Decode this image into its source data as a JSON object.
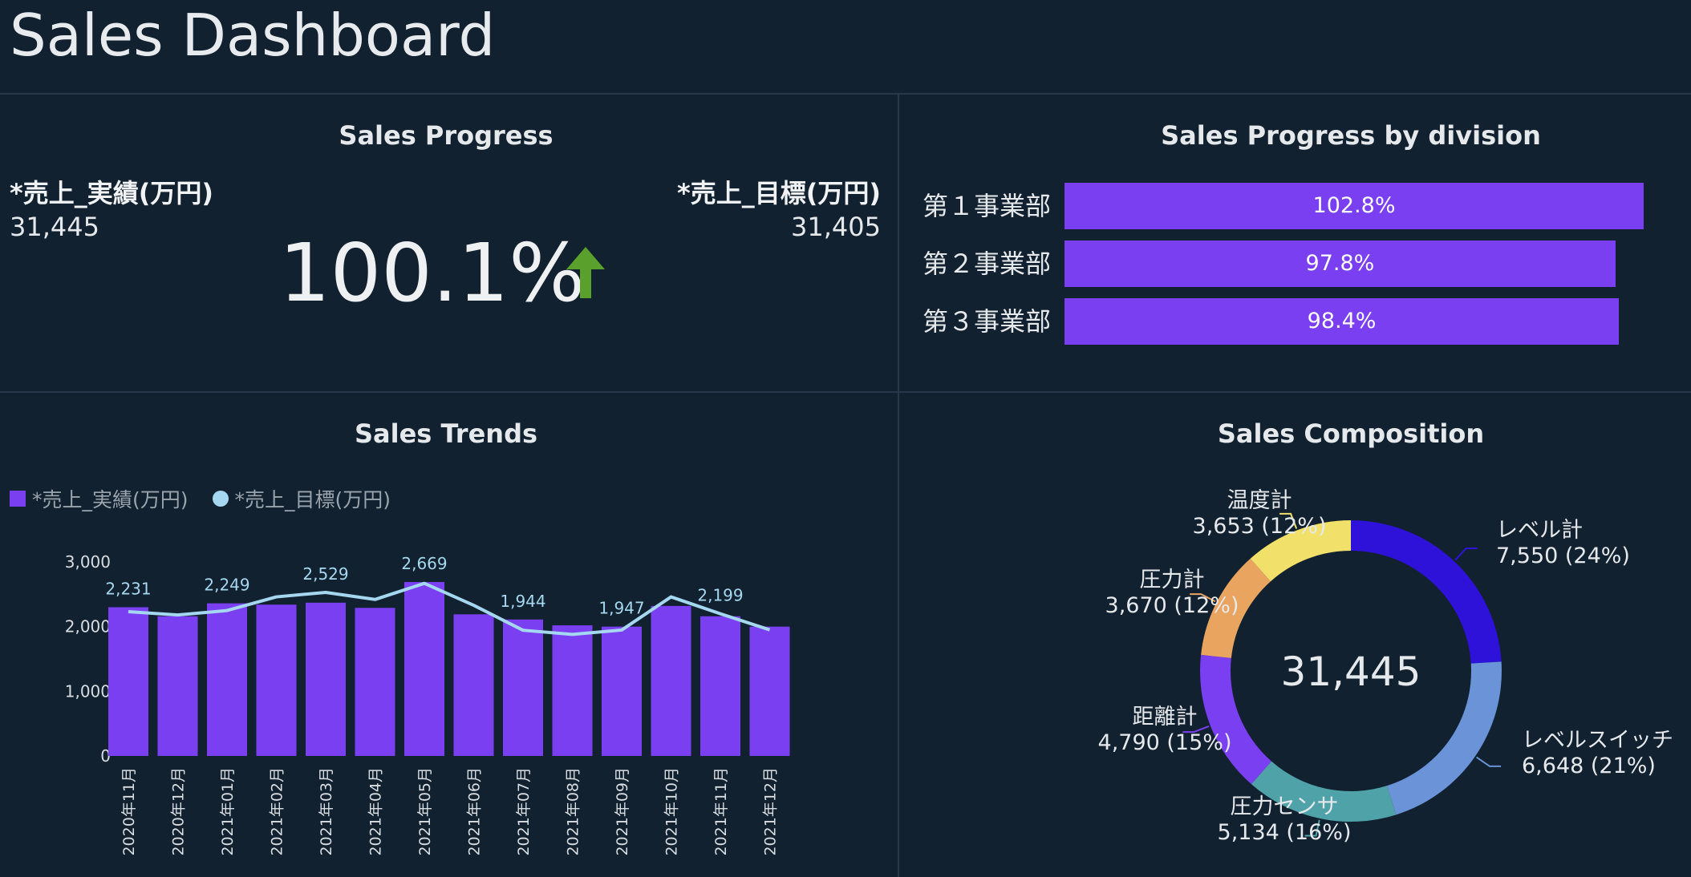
{
  "dashboard": {
    "title": "Sales Dashboard"
  },
  "progress": {
    "title": "Sales Progress",
    "actual_label": "*売上_実績(万円)",
    "actual_value": "31,445",
    "target_label": "*売上_目標(万円)",
    "target_value": "31,405",
    "percent": "100.1%",
    "arrow_icon": "up-arrow-icon",
    "arrow_color": "#5aa02c"
  },
  "division": {
    "title": "Sales Progress by division",
    "rows": [
      {
        "label": "第１事業部",
        "value": 102.8,
        "display": "102.8%"
      },
      {
        "label": "第２事業部",
        "value": 97.8,
        "display": "97.8%"
      },
      {
        "label": "第３事業部",
        "value": 98.4,
        "display": "98.4%"
      }
    ],
    "bar_color": "#7b3ff2"
  },
  "trends": {
    "title": "Sales Trends",
    "legend_actual": "*売上_実績(万円)",
    "legend_target": "*売上_目標(万円)"
  },
  "composition": {
    "title": "Sales Composition",
    "total": "31,445"
  },
  "chart_data": [
    {
      "type": "bar",
      "id": "sales-trends",
      "categories": [
        "2020年11月",
        "2020年12月",
        "2021年01月",
        "2021年02月",
        "2021年03月",
        "2021年04月",
        "2021年05月",
        "2021年06月",
        "2021年07月",
        "2021年08月",
        "2021年09月",
        "2021年10月",
        "2021年11月",
        "2021年12月"
      ],
      "series": [
        {
          "name": "*売上_実績(万円)",
          "type": "bar",
          "color": "#7b3ff2",
          "values": [
            2300,
            2160,
            2360,
            2340,
            2370,
            2290,
            2690,
            2190,
            2110,
            2020,
            2000,
            2320,
            2160,
            2000
          ]
        },
        {
          "name": "*売上_目標(万円)",
          "type": "line",
          "color": "#a5d8f0",
          "values": [
            2231,
            2180,
            2249,
            2460,
            2529,
            2420,
            2669,
            2330,
            1944,
            1880,
            1947,
            2460,
            2199,
            1950
          ]
        }
      ],
      "data_labels": [
        {
          "index": 0,
          "text": "2,231"
        },
        {
          "index": 2,
          "text": "2,249"
        },
        {
          "index": 4,
          "text": "2,529"
        },
        {
          "index": 6,
          "text": "2,669"
        },
        {
          "index": 8,
          "text": "1,944"
        },
        {
          "index": 10,
          "text": "1,947"
        },
        {
          "index": 12,
          "text": "2,199"
        }
      ],
      "ylim": [
        0,
        3000
      ],
      "yticks": [
        "0",
        "1,000",
        "2,000",
        "3,000"
      ],
      "ytick_values": [
        0,
        1000,
        2000,
        3000
      ]
    },
    {
      "type": "pie",
      "id": "sales-composition",
      "donut": true,
      "center_text": "31,445",
      "slices": [
        {
          "name": "レベル計",
          "value": 7550,
          "display": "7,550 (24%)",
          "color": "#2f12d9"
        },
        {
          "name": "レベルスイッチ",
          "value": 6648,
          "display": "6,648 (21%)",
          "color": "#6a93d8"
        },
        {
          "name": "圧力センサ",
          "value": 5134,
          "display": "5,134 (16%)",
          "color": "#4fa3a8"
        },
        {
          "name": "距離計",
          "value": 4790,
          "display": "4,790 (15%)",
          "color": "#7b3ff2"
        },
        {
          "name": "圧力計",
          "value": 3670,
          "display": "3,670 (12%)",
          "color": "#e9a460"
        },
        {
          "name": "温度計",
          "value": 3653,
          "display": "3,653 (12%)",
          "color": "#f1e06a"
        }
      ]
    }
  ]
}
